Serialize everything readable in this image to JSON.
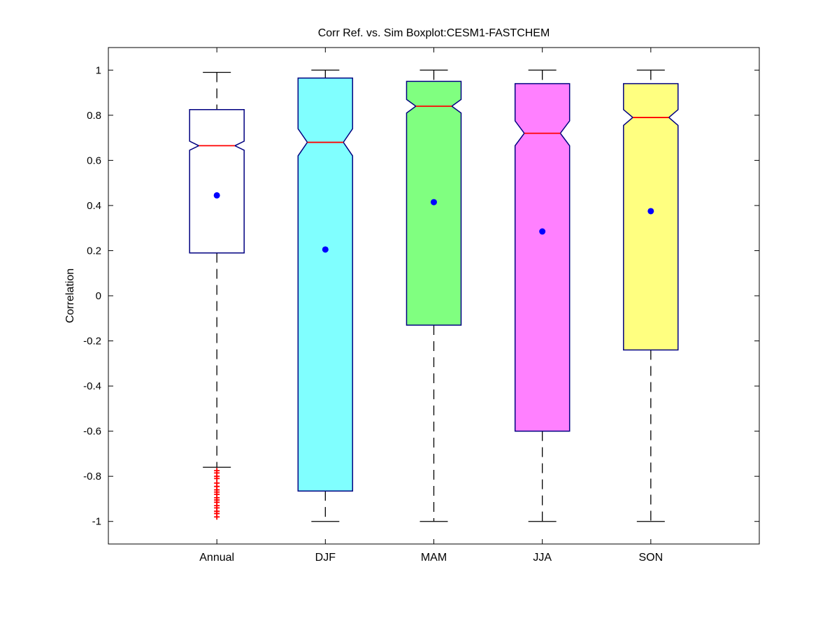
{
  "chart_data": {
    "type": "boxplot",
    "title": "Corr Ref. vs. Sim Boxplot:CESM1-FASTCHEM",
    "xlabel": "",
    "ylabel": "Correlation",
    "ylim": [
      -1.1,
      1.1
    ],
    "yticks": [
      -1,
      -0.8,
      -0.6,
      -0.4,
      -0.2,
      0,
      0.2,
      0.4,
      0.6,
      0.8,
      1
    ],
    "ytick_labels": [
      "-1",
      "-0.8",
      "-0.6",
      "-0.4",
      "-0.2",
      "0",
      "0.2",
      "0.4",
      "0.6",
      "0.8",
      "1"
    ],
    "grid": false,
    "notched": true,
    "colors": {
      "box_edge": "#000080",
      "median": "#ff0000",
      "mean_marker": "#0000ff",
      "whisker": "#000000",
      "outlier": "#ff0000"
    },
    "categories": [
      "Annual",
      "DJF",
      "MAM",
      "JJA",
      "SON"
    ],
    "boxes": [
      {
        "label": "Annual",
        "fill": "#ffffff",
        "whisker_low": -0.76,
        "q1": 0.19,
        "median": 0.665,
        "q3": 0.825,
        "whisker_high": 0.99,
        "mean": 0.445,
        "notch_low": 0.645,
        "notch_high": 0.685,
        "outliers": [
          -0.775,
          -0.785,
          -0.8,
          -0.81,
          -0.83,
          -0.845,
          -0.86,
          -0.87,
          -0.88,
          -0.895,
          -0.905,
          -0.915,
          -0.93,
          -0.94,
          -0.955,
          -0.965,
          -0.98
        ]
      },
      {
        "label": "DJF",
        "fill": "#80ffff",
        "whisker_low": -1.0,
        "q1": -0.865,
        "median": 0.68,
        "q3": 0.965,
        "whisker_high": 1.0,
        "mean": 0.205,
        "notch_low": 0.62,
        "notch_high": 0.74,
        "outliers": []
      },
      {
        "label": "MAM",
        "fill": "#80ff80",
        "whisker_low": -1.0,
        "q1": -0.13,
        "median": 0.84,
        "q3": 0.95,
        "whisker_high": 1.0,
        "mean": 0.415,
        "notch_low": 0.81,
        "notch_high": 0.87,
        "outliers": []
      },
      {
        "label": "JJA",
        "fill": "#ff80ff",
        "whisker_low": -1.0,
        "q1": -0.6,
        "median": 0.72,
        "q3": 0.94,
        "whisker_high": 1.0,
        "mean": 0.285,
        "notch_low": 0.665,
        "notch_high": 0.775,
        "outliers": []
      },
      {
        "label": "SON",
        "fill": "#ffff80",
        "whisker_low": -1.0,
        "q1": -0.24,
        "median": 0.79,
        "q3": 0.94,
        "whisker_high": 1.0,
        "mean": 0.375,
        "notch_low": 0.755,
        "notch_high": 0.825,
        "outliers": []
      }
    ]
  }
}
